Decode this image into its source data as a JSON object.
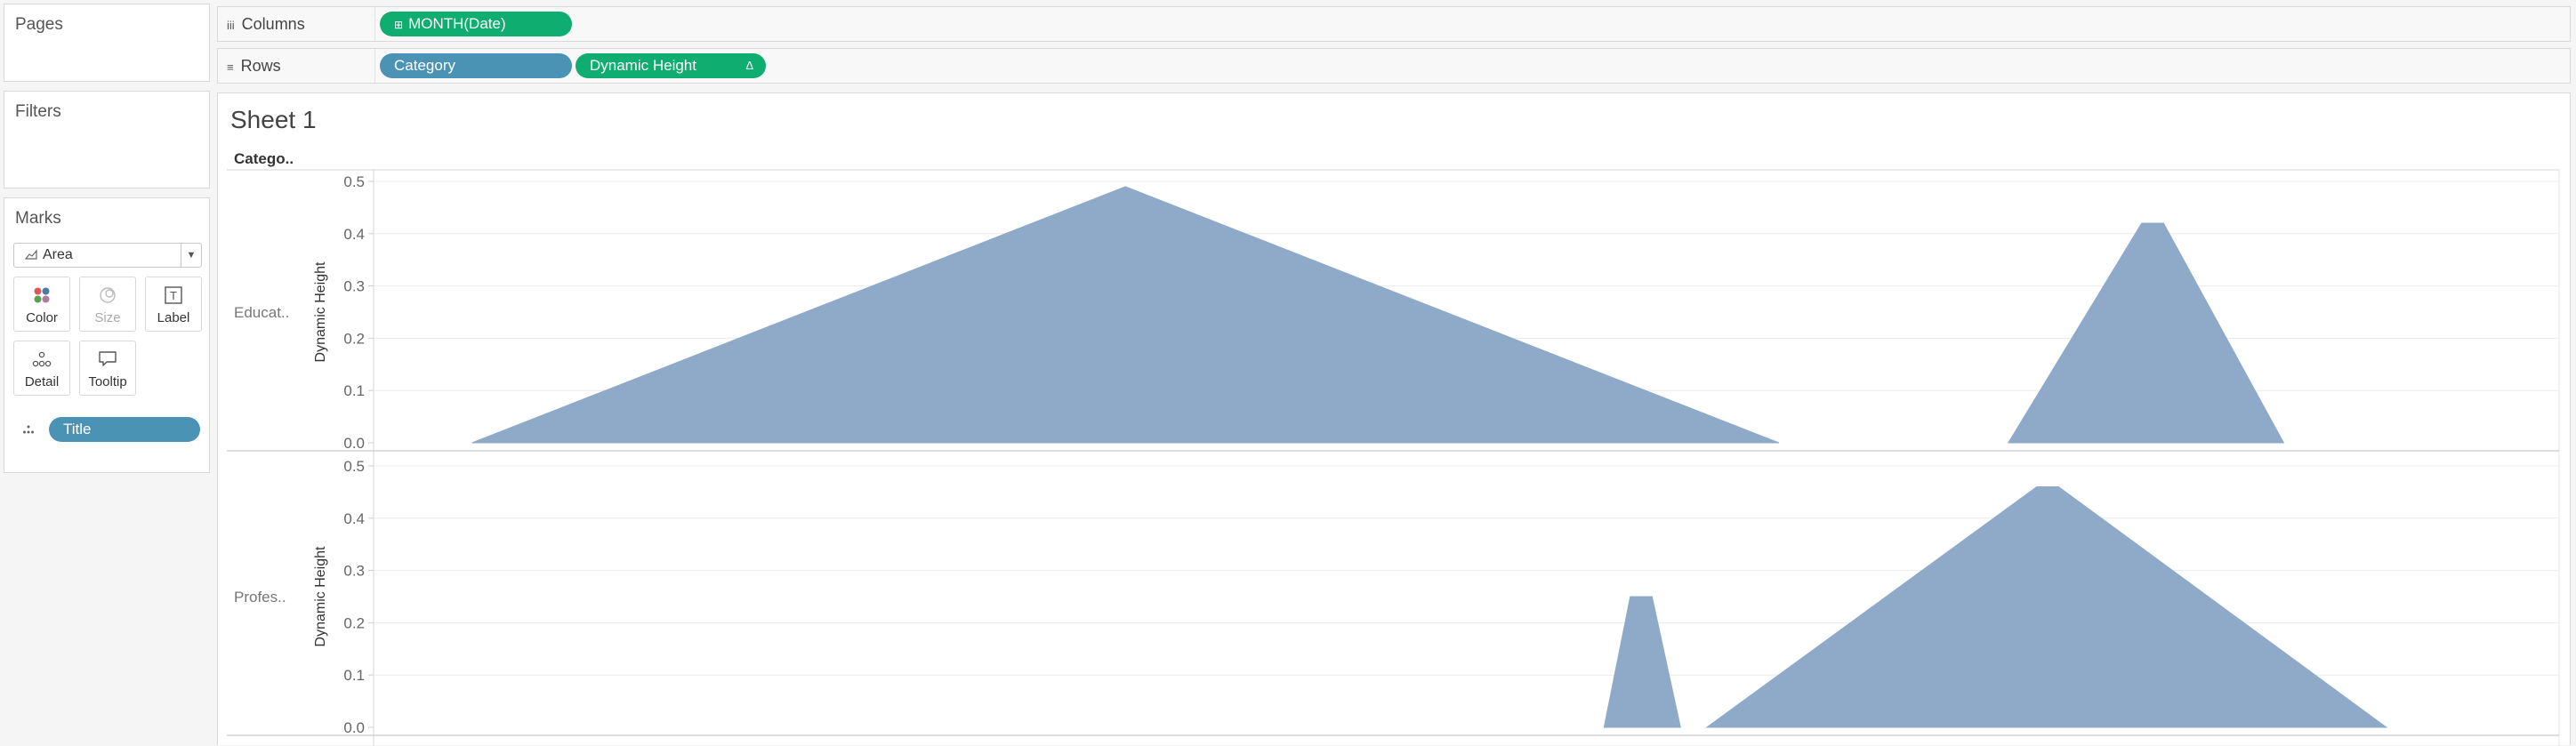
{
  "left_panel": {
    "pages_label": "Pages",
    "filters_label": "Filters",
    "marks_label": "Marks",
    "mark_type": "Area",
    "mark_cards": [
      {
        "label": "Color",
        "icon": "color-dots-icon",
        "enabled": true
      },
      {
        "label": "Size",
        "icon": "size-icon",
        "enabled": false
      },
      {
        "label": "Label",
        "icon": "label-icon",
        "enabled": true
      },
      {
        "label": "Detail",
        "icon": "detail-icon",
        "enabled": true
      },
      {
        "label": "Tooltip",
        "icon": "tooltip-icon",
        "enabled": true
      }
    ],
    "detail_pill": "Title"
  },
  "shelves": {
    "columns_label": "Columns",
    "rows_label": "Rows",
    "columns_pills": [
      "MONTH(Date)"
    ],
    "rows_pills": [
      "Category",
      "Dynamic Height"
    ],
    "dynamic_height_delta": "Δ"
  },
  "view": {
    "sheet_title": "Sheet 1"
  },
  "colors": {
    "area_fill": "#8faac8",
    "pill_blue": "#4b93b5",
    "pill_green": "#0fad6f",
    "grid": "#ececec",
    "axis_text": "#666666"
  },
  "chart_data": {
    "type": "area",
    "column_header": "Catego..",
    "ylabel": "Dynamic Height",
    "ylim": [
      0,
      0.5
    ],
    "yticks": [
      0.0,
      0.1,
      0.2,
      0.3,
      0.4,
      0.5
    ],
    "x_domain": [
      0,
      100
    ],
    "panes": [
      {
        "label": "Educat..",
        "polygons": [
          [
            [
              4.5,
              0
            ],
            [
              34.4,
              0.49
            ],
            [
              64.3,
              0
            ]
          ],
          [
            [
              74.8,
              0
            ],
            [
              80.9,
              0.42
            ],
            [
              81.9,
              0.42
            ],
            [
              87.4,
              0
            ]
          ]
        ]
      },
      {
        "label": "Profes..",
        "polygons": [
          [
            [
              56.3,
              0
            ],
            [
              57.5,
              0.25
            ],
            [
              58.5,
              0.25
            ],
            [
              59.8,
              0
            ]
          ],
          [
            [
              61.0,
              0
            ],
            [
              76.1,
              0.46
            ],
            [
              77.1,
              0.46
            ],
            [
              92.1,
              0
            ]
          ]
        ]
      }
    ]
  }
}
